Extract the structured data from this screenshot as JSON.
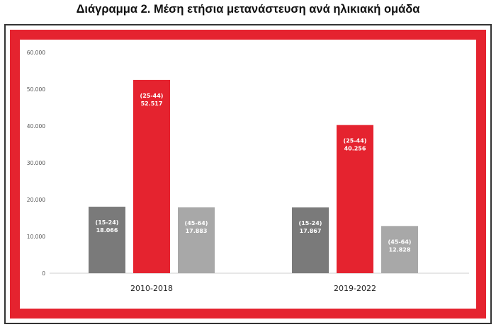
{
  "title": "Διάγραμμα 2. Μέση ετήσια μετανάστευση ανά ηλικιακή ομάδα",
  "colors": {
    "frame_red": "#e5232f",
    "grey_dark": "#7a7a7a",
    "red": "#e5232f",
    "grey_light": "#a8a8a8"
  },
  "chart_data": {
    "type": "bar",
    "title": "Διάγραμμα 2. Μέση ετήσια μετανάστευση ανά ηλικιακή ομάδα",
    "categories": [
      "2010-2018",
      "2019-2022"
    ],
    "ylim": [
      0,
      60000
    ],
    "yticks": [
      "0",
      "10.000",
      "20.000",
      "30.000",
      "40.000",
      "50.000",
      "60.000"
    ],
    "grid": false,
    "legend": "none",
    "series": [
      {
        "name": "(15-24)",
        "color": "#7a7a7a",
        "values": [
          18066,
          17867
        ],
        "value_labels": [
          "18.066",
          "17.867"
        ]
      },
      {
        "name": "(25-44)",
        "color": "#e5232f",
        "values": [
          52517,
          40256
        ],
        "value_labels": [
          "52.517",
          "40.256"
        ]
      },
      {
        "name": "(45-64)",
        "color": "#a8a8a8",
        "values": [
          17883,
          12828
        ],
        "value_labels": [
          "17.883",
          "12.828"
        ]
      }
    ]
  }
}
